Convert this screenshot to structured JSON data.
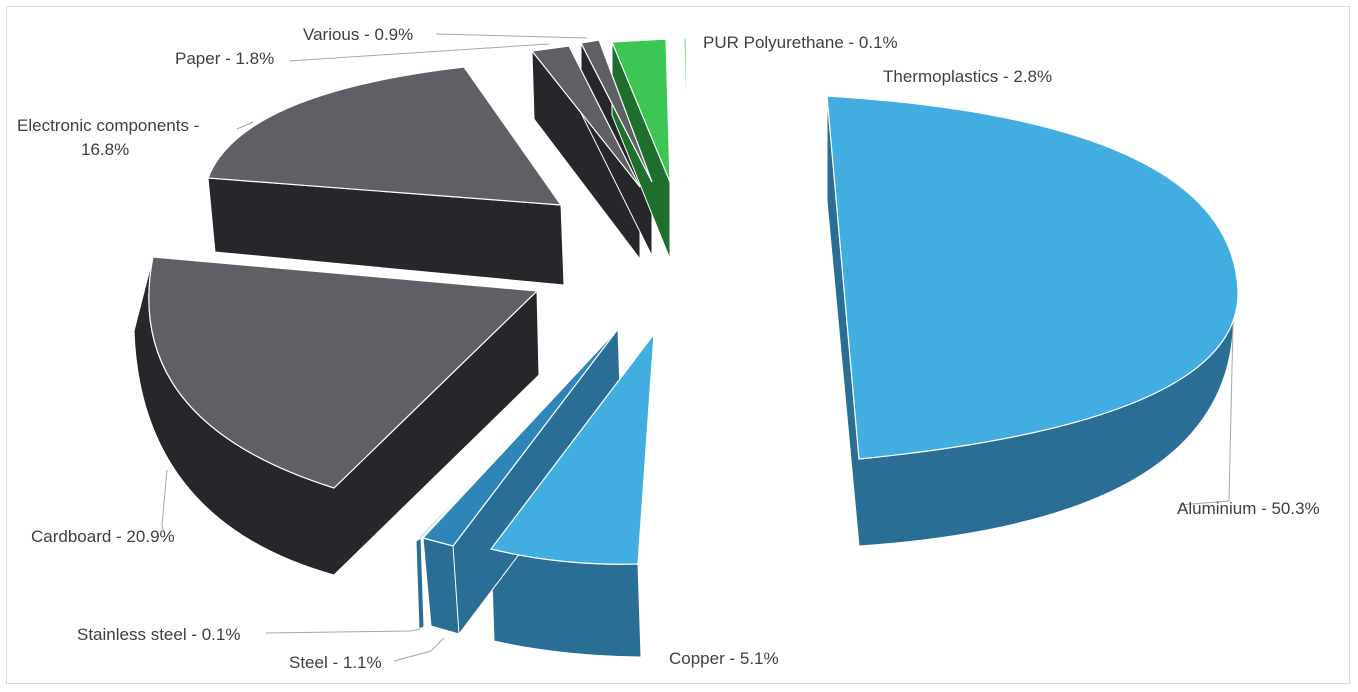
{
  "chart_data": {
    "type": "pie",
    "variant": "3d-exploded",
    "title": "",
    "slices": [
      {
        "name": "Aluminium",
        "value": 50.3,
        "label": "Aluminium - 50.3%",
        "color": "#41ADE0"
      },
      {
        "name": "Copper",
        "value": 5.1,
        "label": "Copper - 5.1%",
        "color": "#41ADE0"
      },
      {
        "name": "Steel",
        "value": 1.1,
        "label": "Steel - 1.1%",
        "color": "#2E86B8"
      },
      {
        "name": "Stainless steel",
        "value": 0.1,
        "label": "Stainless steel - 0.1%",
        "color": "#41ADE0"
      },
      {
        "name": "Cardboard",
        "value": 20.9,
        "label": "Cardboard - 20.9%",
        "color": "#5E6066"
      },
      {
        "name": "Electronic components",
        "value": 16.8,
        "label": [
          "Electronic components -",
          "16.8%"
        ],
        "color": "#5E6066"
      },
      {
        "name": "Paper",
        "value": 1.8,
        "label": "Paper - 1.8%",
        "color": "#5E6066"
      },
      {
        "name": "Various",
        "value": 0.9,
        "label": "Various - 0.9%",
        "color": "#5E6066"
      },
      {
        "name": "Thermoplastics",
        "value": 2.8,
        "label": "Thermoplastics - 2.8%",
        "color": "#3CC653"
      },
      {
        "name": "PUR Polyurethane",
        "value": 0.1,
        "label": "PUR Polyurethane - 0.1%",
        "color": "#3CC653"
      }
    ],
    "legend": "none",
    "colors": {
      "blue_top": "#41ADE0",
      "blue_side": "#2A6E95",
      "grey_top": "#5E6066",
      "grey_side": "#26272B",
      "green_top": "#3CC653",
      "green_side": "#1E6E2E",
      "label_text": "#404040",
      "leader_line": "#A6A6A6"
    }
  }
}
